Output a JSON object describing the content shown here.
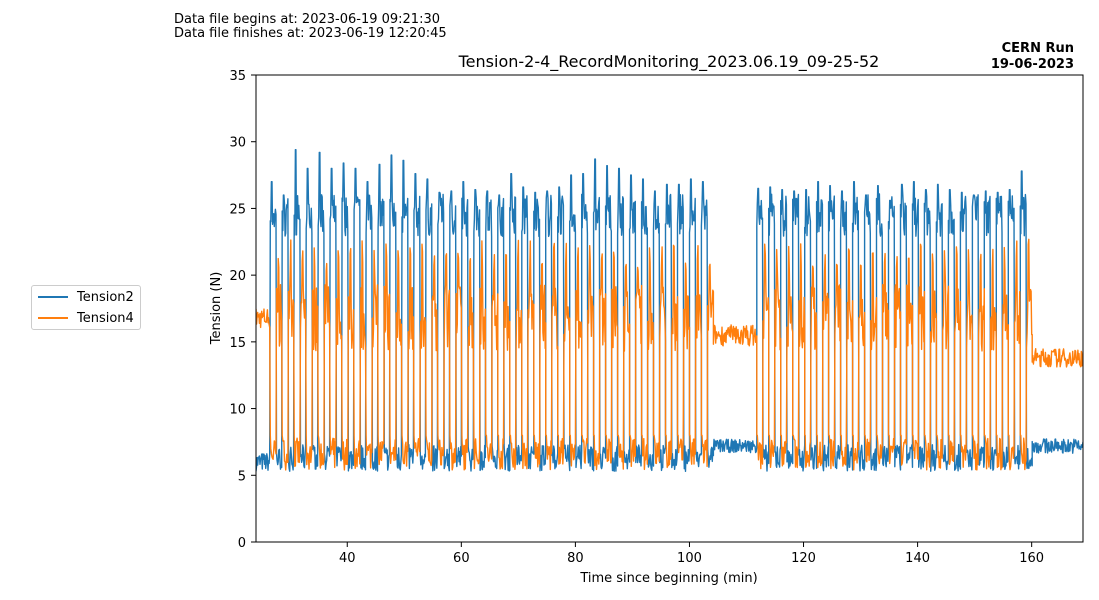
{
  "header": {
    "file_begins": "Data file begins at: 2023-06-19 09:21:30",
    "file_finishes": "Data file finishes at: 2023-06-19 12:20:45",
    "run_line1": "CERN Run",
    "run_line2": "19-06-2023"
  },
  "chart_data": {
    "type": "line",
    "title": "Tension-2-4_RecordMonitoring_2023.06.19_09-25-52",
    "xlabel": "Time since beginning (min)",
    "ylabel": "Tension (N)",
    "xlim": [
      24,
      169
    ],
    "ylim": [
      0,
      35
    ],
    "xticks": [
      40,
      60,
      80,
      100,
      120,
      140,
      160
    ],
    "yticks": [
      0,
      5,
      10,
      15,
      20,
      25,
      30,
      35
    ],
    "grid": false,
    "legend_position": "left-outside",
    "cycle_starts": [
      26.5,
      28.6,
      30.7,
      32.8,
      34.9,
      37.0,
      39.1,
      41.2,
      43.3,
      45.4,
      47.5,
      49.6,
      51.7,
      53.8,
      55.9,
      58.0,
      60.1,
      62.2,
      64.3,
      66.4,
      68.5,
      70.6,
      72.7,
      74.8,
      76.9,
      79.0,
      81.1,
      83.2,
      85.3,
      87.4,
      89.5,
      91.6,
      93.7,
      95.8,
      97.9,
      100.0,
      102.1,
      111.8,
      113.9,
      116.0,
      118.1,
      120.2,
      122.3,
      124.4,
      126.5,
      128.6,
      130.7,
      132.8,
      134.9,
      137.0,
      139.1,
      141.2,
      143.3,
      145.4,
      147.5,
      149.6,
      151.7,
      153.8,
      155.9,
      158.0
    ],
    "cycle_peaks": [
      27,
      26,
      29.4,
      28,
      29.2,
      28,
      28.4,
      28,
      27,
      28.3,
      29,
      28.6,
      27.6,
      27.2,
      26.2,
      26.3,
      27,
      26.4,
      26.3,
      26,
      27.6,
      26.6,
      26.2,
      26.3,
      26.6,
      27.5,
      27.6,
      28.7,
      28.2,
      28,
      27.5,
      27.2,
      26.3,
      26.8,
      26.8,
      27.2,
      27,
      26.5,
      26.6,
      26.4,
      26.3,
      26.4,
      27,
      26.7,
      26.3,
      27,
      26,
      26.7,
      25.6,
      26.8,
      27,
      26.4,
      26.8,
      26.4,
      26.2,
      26,
      26.3,
      26.2,
      26.4,
      27.8
    ],
    "series": [
      {
        "name": "Tension2",
        "color": "#1f77b4",
        "high_level": 24.5,
        "low_level": 6.3,
        "idle_level": 7.2,
        "tail_level": 7.2
      },
      {
        "name": "Tension4",
        "color": "#ff7f0e",
        "high_level": 16.8,
        "low_level": 6.6,
        "idle_level": 15.5,
        "tail_level": 13.8,
        "start_level": 16.8
      }
    ]
  }
}
